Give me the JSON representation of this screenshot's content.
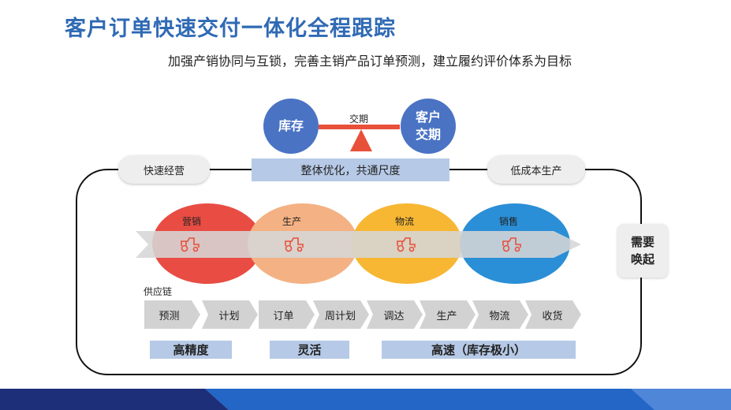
{
  "title": "客户订单快速交付一体化全程跟踪",
  "subtitle": "加强产销协同与互锁，完善主销产品订单预测，建立履约评价体系为目标",
  "balance": {
    "left": "库存",
    "right_line1": "客户",
    "right_line2": "交期",
    "center": "交期"
  },
  "banner": "整体优化，共通尺度",
  "pills": {
    "left": "快速经营",
    "right": "低成本生产"
  },
  "stages": [
    {
      "label": "营销",
      "color": "#e84c43"
    },
    {
      "label": "生产",
      "color": "#f4b183"
    },
    {
      "label": "物流",
      "color": "#f7b733"
    },
    {
      "label": "销售",
      "color": "#2a8fd6"
    }
  ],
  "need_wakeup": {
    "line1": "需要",
    "line2": "唤起"
  },
  "supply_chain_label": "供应链",
  "steps": [
    "预测",
    "计划",
    "订单",
    "周计划",
    "调达",
    "生产",
    "物流",
    "收货"
  ],
  "tags": [
    "高精度",
    "灵活",
    "高速（库存极小）"
  ],
  "colors": {
    "title": "#2f6ab4",
    "circle": "#4a73c4",
    "balance": "#e8503a",
    "banner": "#b6c9e6",
    "tractor": "#e8503a"
  }
}
